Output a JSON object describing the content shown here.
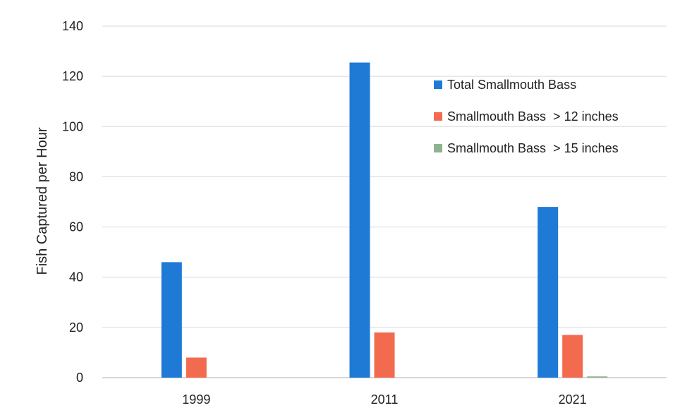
{
  "chart_data": {
    "type": "bar",
    "title": "",
    "xlabel": "",
    "ylabel": "Fish Captured per Hour",
    "ylim": [
      0,
      140
    ],
    "yticks": [
      0,
      20,
      40,
      60,
      80,
      100,
      120,
      140
    ],
    "categories": [
      "1999",
      "2011",
      "2021"
    ],
    "grid": true,
    "legend_position": "top-right",
    "series": [
      {
        "name": "Total Smallmouth Bass",
        "color": "#1f7ad6",
        "values": [
          46,
          125.5,
          68
        ]
      },
      {
        "name": "Smallmouth Bass  > 12 inches",
        "color": "#f26b4f",
        "values": [
          8,
          18,
          17
        ]
      },
      {
        "name": "Smallmouth Bass  > 15 inches",
        "color": "#8db38f",
        "values": [
          0,
          0,
          0.5
        ]
      }
    ]
  }
}
